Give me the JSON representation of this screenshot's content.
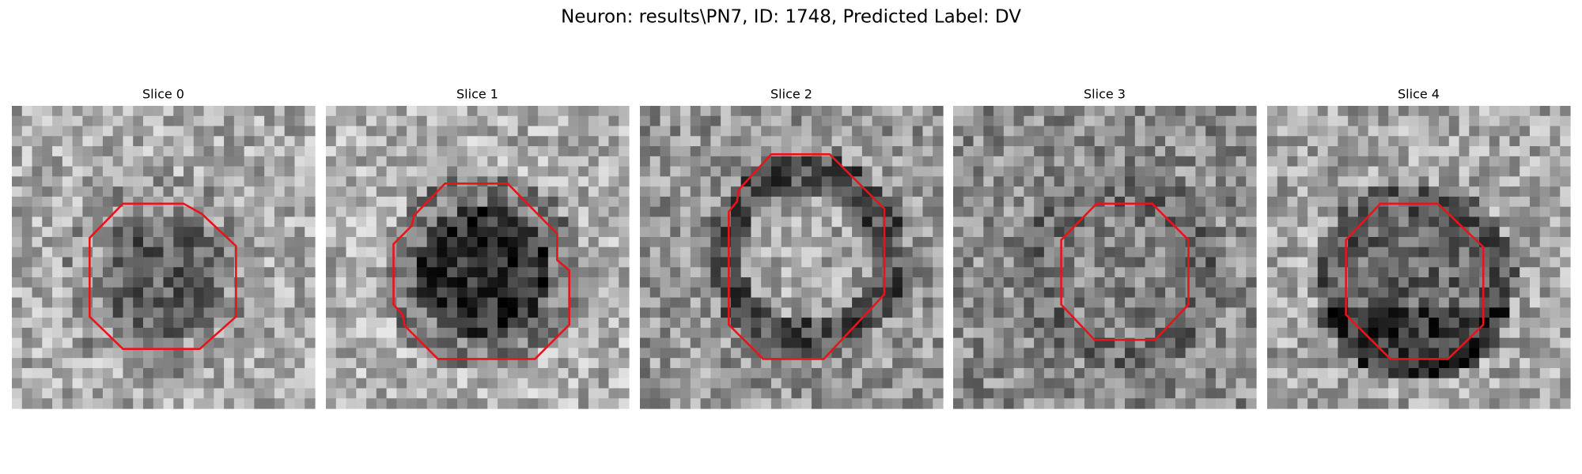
{
  "title": "Neuron: results\\PN7, ID: 1748, Predicted Label: DV",
  "panels": [
    {
      "title": "Slice 0"
    },
    {
      "title": "Slice 1"
    },
    {
      "title": "Slice 2"
    },
    {
      "title": "Slice 3"
    },
    {
      "title": "Slice 4"
    }
  ]
}
